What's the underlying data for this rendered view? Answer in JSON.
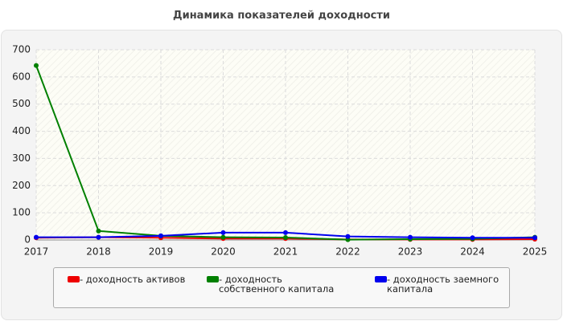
{
  "chart_data": {
    "type": "line",
    "title": "Динамика показателей доходности",
    "x": [
      2017,
      2018,
      2019,
      2020,
      2021,
      2022,
      2023,
      2024,
      2025
    ],
    "xlim": [
      2017,
      2025
    ],
    "xticks": [
      2017,
      2018,
      2019,
      2020,
      2021,
      2022,
      2023,
      2024,
      2025
    ],
    "ylim": [
      0,
      700
    ],
    "yticks": [
      0,
      100,
      200,
      300,
      400,
      500,
      600,
      700
    ],
    "grid": true,
    "series": [
      {
        "name": "- доходность активов",
        "color": "#ee0000",
        "values": [
          8,
          10,
          8,
          5,
          5,
          2,
          2,
          2,
          3
        ]
      },
      {
        "name": "- доходность собственного капитала",
        "color": "#008000",
        "values": [
          642,
          33,
          15,
          10,
          9,
          1,
          3,
          4,
          10
        ]
      },
      {
        "name": "- доходность заемного капитала",
        "color": "#0000ee",
        "values": [
          10,
          10,
          15,
          27,
          27,
          13,
          10,
          8,
          8
        ]
      }
    ]
  }
}
